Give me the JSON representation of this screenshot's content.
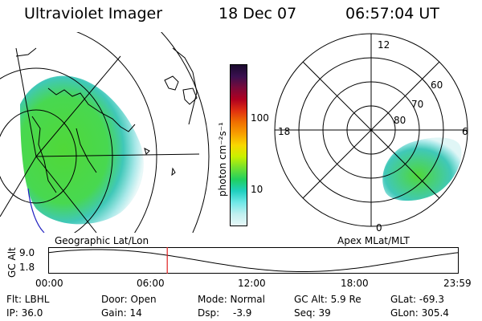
{
  "header": {
    "title": "Ultraviolet Imager",
    "date": "18 Dec 07",
    "time": "06:57:04 UT"
  },
  "left_panel": {
    "label": "Geographic Lat/Lon"
  },
  "right_panel": {
    "label": "Apex MLat/MLT",
    "mlt_labels": {
      "top": "12",
      "left": "18",
      "right": "6",
      "bottom": "0"
    },
    "lat_labels": [
      "60",
      "70",
      "80"
    ]
  },
  "colorbar": {
    "unit_label": "photon cm⁻²s⁻¹",
    "tick_labels": [
      "100",
      "10"
    ],
    "colors": [
      "#1a0a2e",
      "#3a1050",
      "#7a0a3a",
      "#b00020",
      "#e03010",
      "#f07000",
      "#f8a000",
      "#f8d800",
      "#c8f000",
      "#70e030",
      "#20d060",
      "#20d0c0",
      "#70e8e8",
      "#c0f0f0",
      "#e8f8f8"
    ]
  },
  "timeline": {
    "axis_label": "GC Alt",
    "y_ticks": [
      "9.0",
      "1.8"
    ],
    "x_ticks": [
      "00:00",
      "06:00",
      "12:00",
      "18:00",
      "23:59"
    ],
    "current_time_fraction": 0.29,
    "marker_color": "#e02020"
  },
  "info": {
    "filter": "Flt: LBHL",
    "ip": "IP: 36.0",
    "door": "Door: Open",
    "gain": "Gain: 14",
    "mode": "Mode: Normal",
    "dsp_label": "Dsp:",
    "dsp_value": "-3.9",
    "gc_alt": "GC Alt: 5.9 Re",
    "seq": "Seq: 39",
    "glat": "GLat: -69.3",
    "glon": "GLon: 305.4"
  }
}
